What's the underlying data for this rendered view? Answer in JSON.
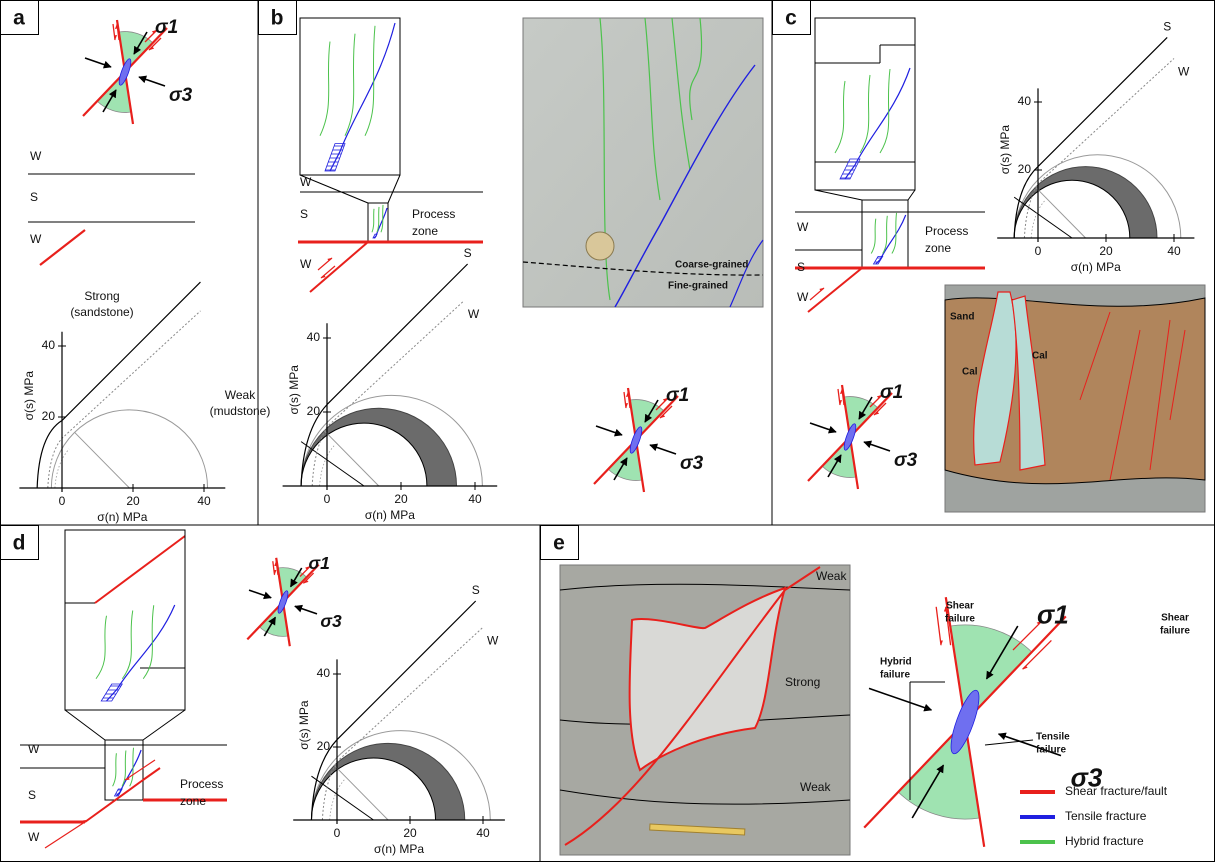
{
  "panels": [
    {
      "label": "a",
      "sigma1": "σ1",
      "sigma3": "σ3",
      "layers": [
        "W",
        "S",
        "W"
      ],
      "strong": [
        "Strong",
        "(sandstone)"
      ],
      "weak": [
        "Weak",
        "(mudstone)"
      ],
      "mohr": {
        "ylabel": "σ(s) MPa",
        "xlabel": "σ(n) MPa",
        "yticks": [
          20,
          40
        ],
        "xticks": [
          0,
          20,
          40
        ]
      }
    },
    {
      "label": "b",
      "layers": [
        "W",
        "S",
        "W"
      ],
      "process_zone": [
        "Process",
        "zone"
      ],
      "mohr": {
        "ylabel": "σ(s) MPa",
        "xlabel": "σ(n) MPa",
        "yticks": [
          20,
          40
        ],
        "xticks": [
          0,
          20,
          40
        ],
        "envelopes": [
          "S",
          "W"
        ]
      },
      "photo_labels": [
        "Coarse-grained",
        "Fine-grained"
      ],
      "sigma1": "σ1",
      "sigma3": "σ3"
    },
    {
      "label": "c",
      "layers": [
        "W",
        "S",
        "W"
      ],
      "process_zone": [
        "Process",
        "zone"
      ],
      "mohr": {
        "ylabel": "σ(s) MPa",
        "xlabel": "σ(n) MPa",
        "yticks": [
          20,
          40
        ],
        "xticks": [
          0,
          20,
          40
        ],
        "envelopes": [
          "S",
          "W"
        ]
      },
      "photo_labels": [
        "Sand",
        "Cal",
        "Cal"
      ],
      "sigma1": "σ1",
      "sigma3": "σ3"
    },
    {
      "label": "d",
      "layers": [
        "W",
        "S",
        "W"
      ],
      "process_zone": [
        "Process",
        "zone"
      ],
      "sigma1": "σ1",
      "sigma3": "σ3",
      "mohr": {
        "ylabel": "σ(s) MPa",
        "xlabel": "σ(n) MPa",
        "yticks": [
          20,
          40
        ],
        "xticks": [
          0,
          20,
          40
        ],
        "envelopes": [
          "S",
          "W"
        ]
      }
    },
    {
      "label": "e",
      "photo_labels": [
        "Weak",
        "Strong",
        "Weak"
      ],
      "sigma1": "σ1",
      "sigma3": "σ3",
      "shear_failure": [
        [
          "Shear",
          "failure"
        ],
        [
          "Shear",
          "failure"
        ]
      ],
      "hybrid_failure": [
        "Hybrid",
        "failure"
      ],
      "tensile_failure": [
        "Tensile",
        "failure"
      ],
      "legend": [
        {
          "label": "Shear fracture/fault",
          "color": "#e8201c"
        },
        {
          "label": "Tensile fracture",
          "color": "#1f1fe0"
        },
        {
          "label": "Hybrid fracture",
          "color": "#4cc24c"
        }
      ]
    }
  ]
}
